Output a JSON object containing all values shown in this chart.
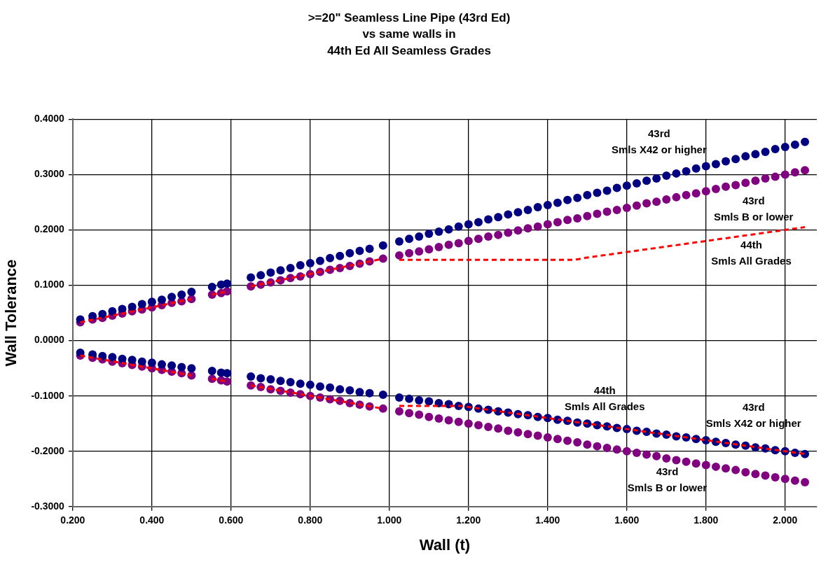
{
  "chart_data": {
    "type": "scatter",
    "title": ">=20\" Seamless Line Pipe (43rd Ed)\nvs same walls in\n44th Ed All Seamless Grades",
    "xlabel": "Wall (t)",
    "ylabel": "Wall Tolerance",
    "x": [
      0.219,
      0.25,
      0.275,
      0.3,
      0.325,
      0.35,
      0.375,
      0.4,
      0.425,
      0.45,
      0.475,
      0.5,
      0.552,
      0.575,
      0.59,
      0.65,
      0.675,
      0.7,
      0.725,
      0.75,
      0.775,
      0.8,
      0.825,
      0.85,
      0.875,
      0.9,
      0.925,
      0.95,
      0.984,
      1.025,
      1.05,
      1.075,
      1.1,
      1.125,
      1.15,
      1.175,
      1.2,
      1.225,
      1.25,
      1.275,
      1.3,
      1.325,
      1.35,
      1.375,
      1.4,
      1.425,
      1.45,
      1.475,
      1.5,
      1.525,
      1.55,
      1.575,
      1.6,
      1.625,
      1.65,
      1.675,
      1.7,
      1.725,
      1.75,
      1.775,
      1.8,
      1.825,
      1.85,
      1.875,
      1.9,
      1.925,
      1.95,
      1.975,
      2.0,
      2.025,
      2.05
    ],
    "series": [
      {
        "color": "#000080",
        "values": [
          0.038,
          0.044,
          0.048,
          0.053,
          0.057,
          0.061,
          0.066,
          0.07,
          0.074,
          0.079,
          0.083,
          0.088,
          0.097,
          0.101,
          0.103,
          0.114,
          0.118,
          0.123,
          0.127,
          0.131,
          0.136,
          0.14,
          0.144,
          0.149,
          0.153,
          0.158,
          0.162,
          0.166,
          0.172,
          0.179,
          0.184,
          0.188,
          0.193,
          0.197,
          0.201,
          0.206,
          0.21,
          0.214,
          0.219,
          0.223,
          0.228,
          0.232,
          0.236,
          0.241,
          0.245,
          0.249,
          0.254,
          0.258,
          0.263,
          0.267,
          0.271,
          0.276,
          0.28,
          0.284,
          0.289,
          0.293,
          0.298,
          0.302,
          0.306,
          0.311,
          0.315,
          0.319,
          0.324,
          0.328,
          0.333,
          0.337,
          0.341,
          0.346,
          0.35,
          0.354,
          0.359
        ]
      },
      {
        "color": "#800080",
        "values": [
          0.033,
          0.038,
          0.041,
          0.045,
          0.049,
          0.053,
          0.056,
          0.06,
          0.064,
          0.068,
          0.071,
          0.075,
          0.083,
          0.086,
          0.089,
          0.098,
          0.101,
          0.105,
          0.109,
          0.113,
          0.116,
          0.12,
          0.124,
          0.128,
          0.131,
          0.135,
          0.139,
          0.143,
          0.148,
          0.154,
          0.158,
          0.161,
          0.165,
          0.169,
          0.173,
          0.176,
          0.18,
          0.184,
          0.188,
          0.191,
          0.195,
          0.199,
          0.203,
          0.206,
          0.21,
          0.214,
          0.218,
          0.221,
          0.225,
          0.229,
          0.233,
          0.236,
          0.24,
          0.244,
          0.248,
          0.251,
          0.255,
          0.259,
          0.263,
          0.266,
          0.27,
          0.274,
          0.278,
          0.281,
          0.285,
          0.289,
          0.293,
          0.296,
          0.3,
          0.304,
          0.308
        ]
      },
      {
        "color": "#000080",
        "values": [
          -0.022,
          -0.025,
          -0.028,
          -0.03,
          -0.033,
          -0.035,
          -0.038,
          -0.04,
          -0.043,
          -0.045,
          -0.048,
          -0.05,
          -0.055,
          -0.058,
          -0.059,
          -0.065,
          -0.068,
          -0.07,
          -0.073,
          -0.075,
          -0.078,
          -0.08,
          -0.083,
          -0.085,
          -0.088,
          -0.09,
          -0.093,
          -0.095,
          -0.098,
          -0.103,
          -0.105,
          -0.108,
          -0.11,
          -0.113,
          -0.115,
          -0.118,
          -0.12,
          -0.123,
          -0.125,
          -0.128,
          -0.13,
          -0.133,
          -0.135,
          -0.138,
          -0.14,
          -0.143,
          -0.145,
          -0.148,
          -0.15,
          -0.153,
          -0.155,
          -0.158,
          -0.16,
          -0.163,
          -0.165,
          -0.168,
          -0.17,
          -0.173,
          -0.175,
          -0.178,
          -0.18,
          -0.183,
          -0.185,
          -0.188,
          -0.19,
          -0.193,
          -0.195,
          -0.198,
          -0.2,
          -0.203,
          -0.205
        ]
      },
      {
        "color": "#800080",
        "values": [
          -0.027,
          -0.031,
          -0.034,
          -0.038,
          -0.041,
          -0.044,
          -0.047,
          -0.05,
          -0.053,
          -0.056,
          -0.059,
          -0.063,
          -0.069,
          -0.072,
          -0.074,
          -0.081,
          -0.084,
          -0.088,
          -0.091,
          -0.094,
          -0.097,
          -0.1,
          -0.103,
          -0.106,
          -0.109,
          -0.113,
          -0.116,
          -0.119,
          -0.123,
          -0.128,
          -0.131,
          -0.134,
          -0.138,
          -0.141,
          -0.144,
          -0.147,
          -0.15,
          -0.153,
          -0.156,
          -0.159,
          -0.163,
          -0.166,
          -0.169,
          -0.172,
          -0.175,
          -0.178,
          -0.181,
          -0.184,
          -0.188,
          -0.191,
          -0.194,
          -0.197,
          -0.2,
          -0.203,
          -0.206,
          -0.209,
          -0.213,
          -0.216,
          -0.219,
          -0.222,
          -0.225,
          -0.228,
          -0.231,
          -0.234,
          -0.238,
          -0.241,
          -0.244,
          -0.247,
          -0.25,
          -0.253,
          -0.256
        ]
      },
      {
        "type": "line",
        "color": "#ff0000",
        "line_style": "dashed",
        "marker": "none",
        "x": [
          0.219,
          0.5,
          0.52,
          0.552,
          0.59,
          0.62,
          0.65,
          0.984,
          1.0,
          1.025,
          1.3,
          1.4,
          1.46,
          1.5,
          1.6,
          1.8,
          2.0,
          2.05
        ],
        "values": [
          0.033,
          0.075,
          null,
          0.083,
          0.089,
          null,
          0.098,
          0.148,
          null,
          0.146,
          0.146,
          0.146,
          0.146,
          0.15,
          0.16,
          0.18,
          0.2,
          0.205
        ]
      },
      {
        "type": "line",
        "color": "#ff0000",
        "line_style": "dashed",
        "marker": "none",
        "x": [
          0.219,
          0.5,
          0.52,
          0.552,
          0.59,
          0.62,
          0.65,
          0.984,
          1.0,
          1.025,
          1.1,
          1.18,
          1.2,
          1.6,
          2.0,
          2.05
        ],
        "values": [
          -0.027,
          -0.063,
          null,
          -0.069,
          -0.074,
          null,
          -0.081,
          -0.123,
          null,
          -0.118,
          -0.118,
          -0.118,
          -0.12,
          -0.16,
          -0.2,
          -0.205
        ]
      }
    ],
    "annotations": [
      "43rd\nSmls X42 or higher",
      "43rd\nSmls B or lower",
      "44th\nSmls All Grades",
      "44th\nSmls All Grades",
      "43rd\nSmls X42 or higher",
      "43rd\nSmls B or lower"
    ],
    "xlim": [
      0.2,
      2.08
    ],
    "xticks": [
      {
        "value": 0.2,
        "label": "0.200"
      },
      {
        "value": 0.4,
        "label": "0.400"
      },
      {
        "value": 0.6,
        "label": "0.600"
      },
      {
        "value": 0.8,
        "label": "0.800"
      },
      {
        "value": 1.0,
        "label": "1.000"
      },
      {
        "value": 1.2,
        "label": "1.200"
      },
      {
        "value": 1.4,
        "label": "1.400"
      },
      {
        "value": 1.6,
        "label": "1.600"
      },
      {
        "value": 1.8,
        "label": "1.800"
      },
      {
        "value": 2.0,
        "label": "2.000"
      }
    ],
    "ylim": [
      -0.3,
      0.4
    ],
    "yticks": [
      {
        "value": -0.3,
        "label": "-0.3000"
      },
      {
        "value": -0.2,
        "label": "-0.2000"
      },
      {
        "value": -0.1,
        "label": "-0.1000"
      },
      {
        "value": 0,
        "label": "0.0000"
      },
      {
        "value": 0.1,
        "label": "0.1000"
      },
      {
        "value": 0.2,
        "label": "0.2000"
      },
      {
        "value": 0.3,
        "label": "0.3000"
      },
      {
        "value": 0.4,
        "label": "0.4000"
      }
    ],
    "grid": true,
    "legend": false,
    "marker": "circle"
  }
}
